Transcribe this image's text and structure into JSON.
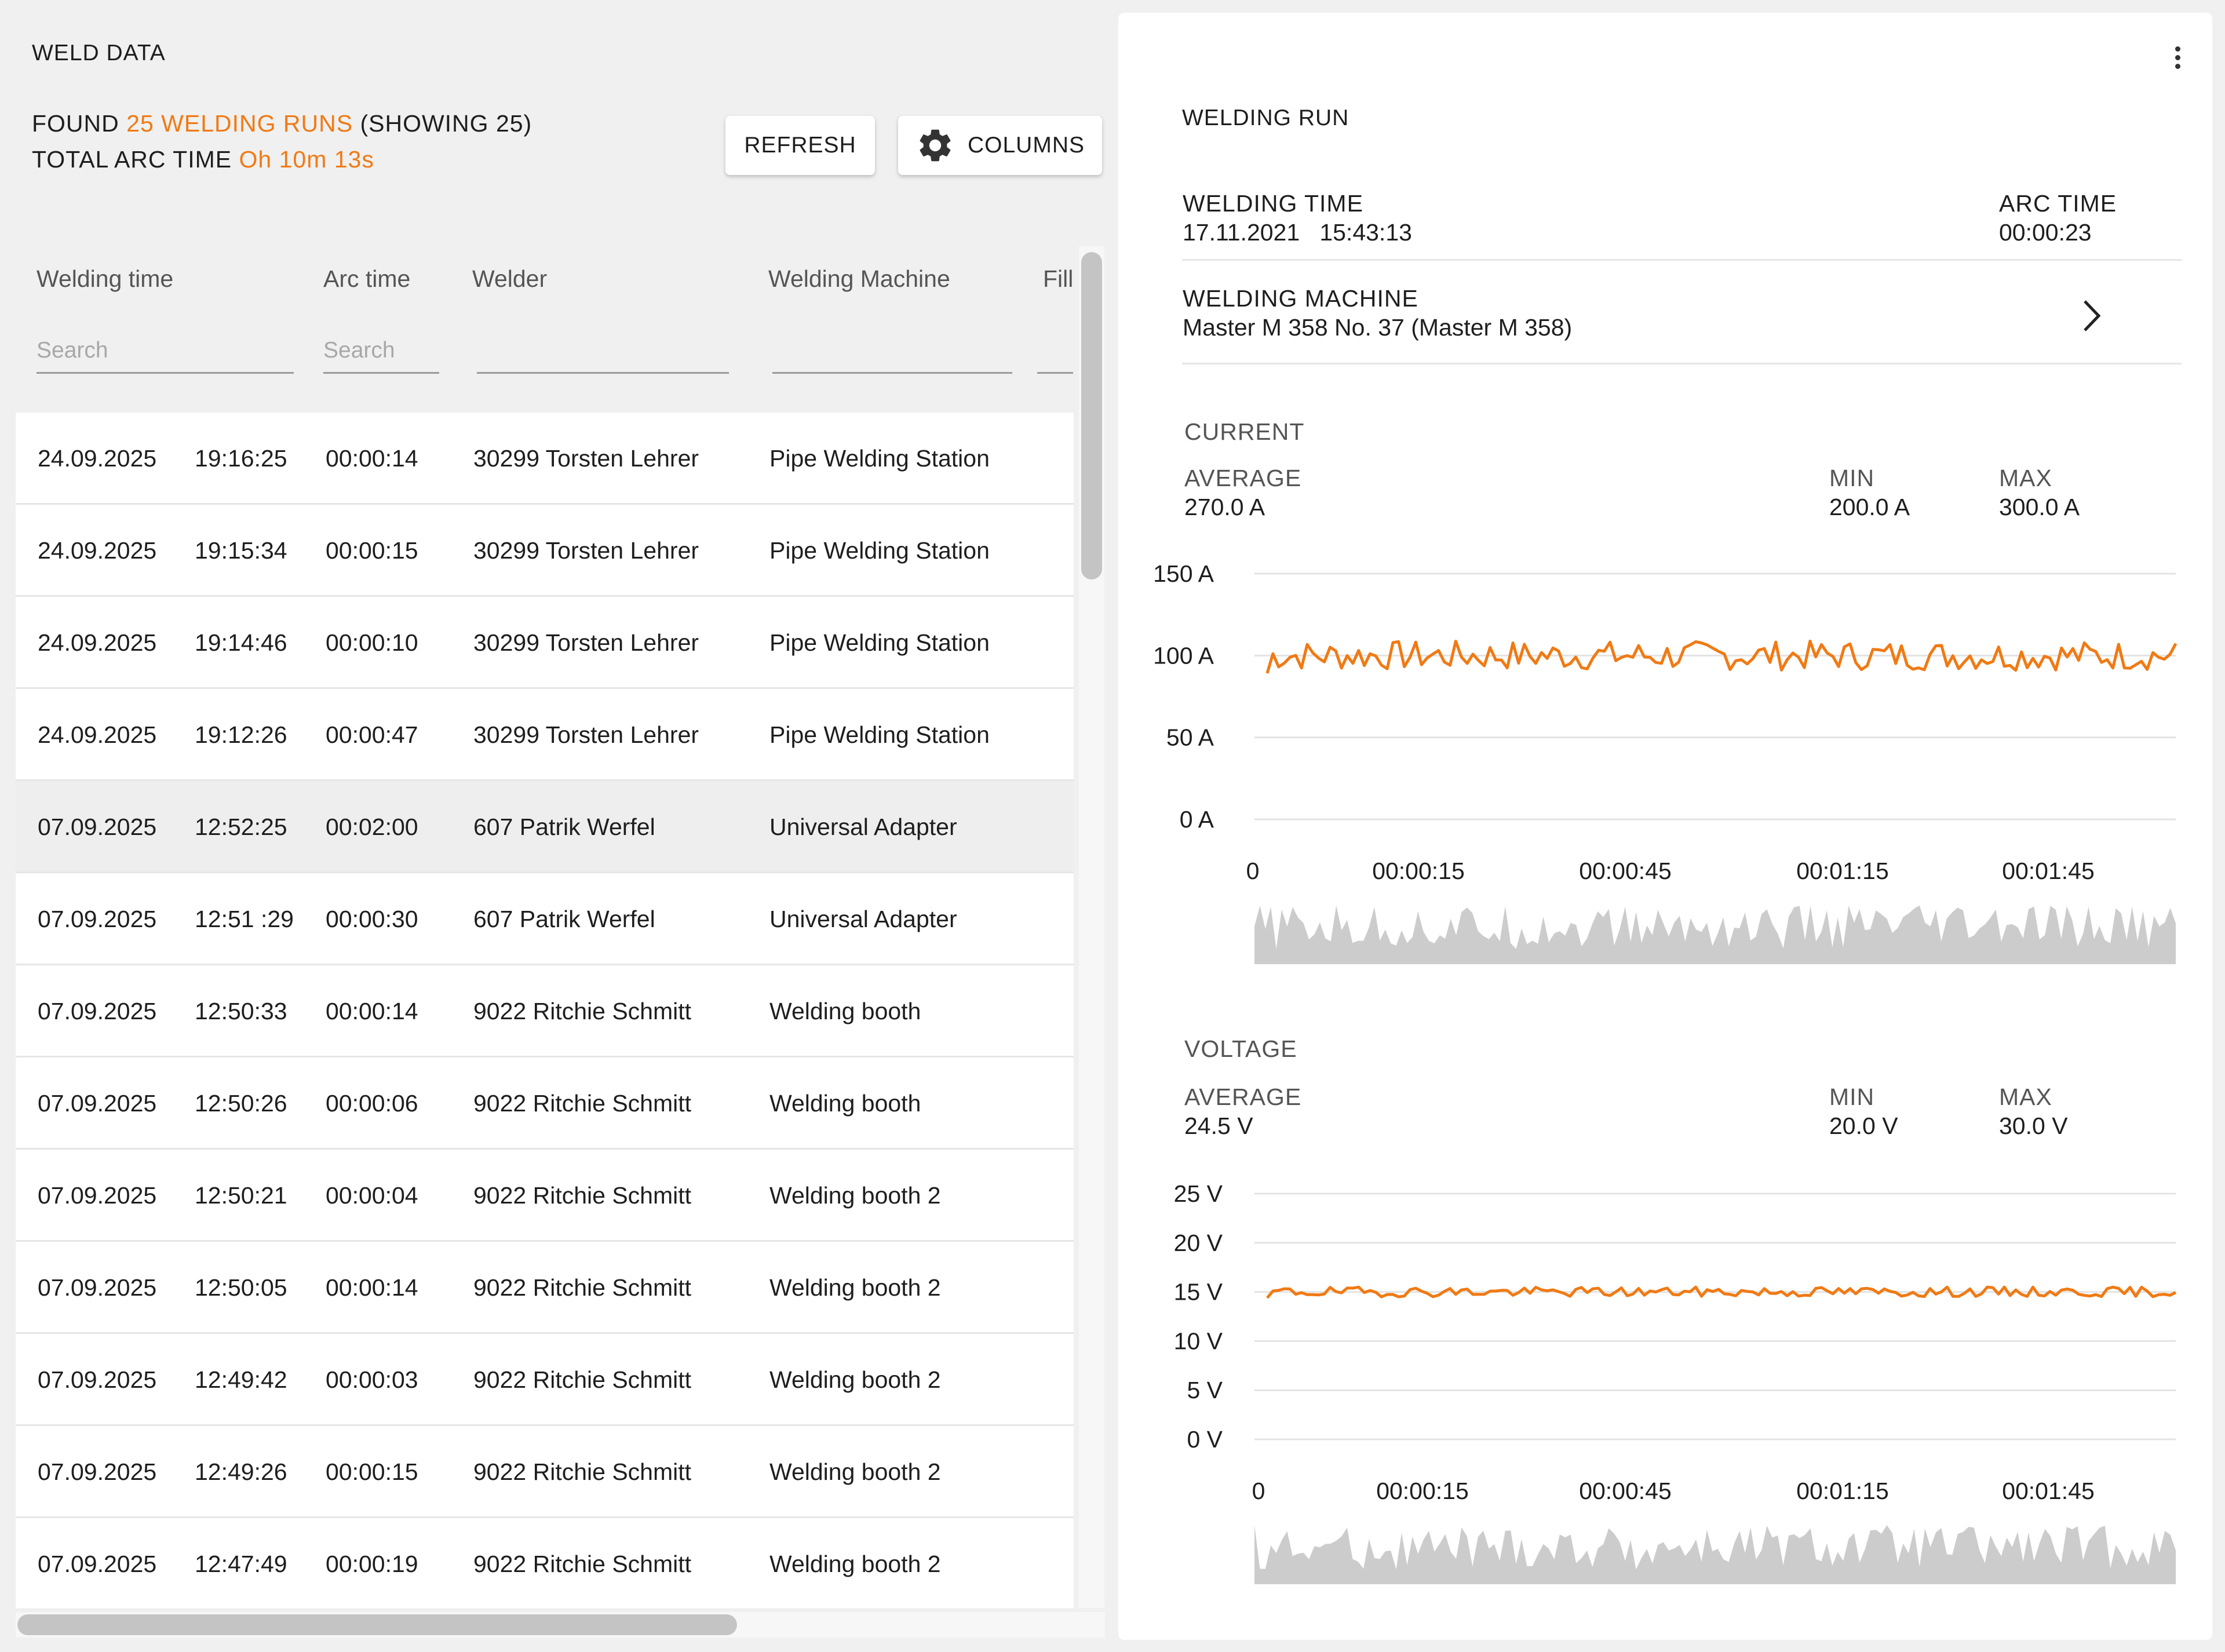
{
  "app": {
    "title": "WELD DATA"
  },
  "summary": {
    "found_prefix": "FOUND ",
    "found_count": "25 WELDING RUNS",
    "found_suffix": " (SHOWING 25)",
    "arc_prefix": "TOTAL ARC TIME ",
    "arc_value": "Oh 10m 13s"
  },
  "toolbar": {
    "refresh_label": "REFRESH",
    "columns_label": "COLUMNS"
  },
  "table": {
    "columns": [
      {
        "label": "Welding time",
        "placeholder": "Search"
      },
      {
        "label": "Arc time",
        "placeholder": "Search"
      },
      {
        "label": "Welder",
        "placeholder": ""
      },
      {
        "label": "Welding Machine",
        "placeholder": ""
      },
      {
        "label": "Fill",
        "placeholder": ""
      }
    ],
    "rows": [
      {
        "date": "24.09.2025",
        "time": "19:16:25",
        "arc": "00:00:14",
        "welder": "30299 Torsten Lehrer",
        "machine": "Pipe Welding Station"
      },
      {
        "date": "24.09.2025",
        "time": "19:15:34",
        "arc": "00:00:15",
        "welder": "30299 Torsten Lehrer",
        "machine": "Pipe Welding Station"
      },
      {
        "date": "24.09.2025",
        "time": "19:14:46",
        "arc": "00:00:10",
        "welder": "30299 Torsten Lehrer",
        "machine": "Pipe Welding Station"
      },
      {
        "date": "24.09.2025",
        "time": "19:12:26",
        "arc": "00:00:47",
        "welder": "30299 Torsten Lehrer",
        "machine": "Pipe Welding Station"
      },
      {
        "date": "07.09.2025",
        "time": "12:52:25",
        "arc": "00:02:00",
        "welder": "607 Patrik Werfel",
        "machine": "Universal Adapter",
        "selected": true
      },
      {
        "date": "07.09.2025",
        "time": "12:51 :29",
        "arc": "00:00:30",
        "welder": "607 Patrik Werfel",
        "machine": "Universal Adapter"
      },
      {
        "date": "07.09.2025",
        "time": "12:50:33",
        "arc": "00:00:14",
        "welder": "9022 Ritchie Schmitt",
        "machine": "Welding booth"
      },
      {
        "date": "07.09.2025",
        "time": "12:50:26",
        "arc": "00:00:06",
        "welder": "9022 Ritchie Schmitt",
        "machine": "Welding booth"
      },
      {
        "date": "07.09.2025",
        "time": "12:50:21",
        "arc": "00:00:04",
        "welder": "9022 Ritchie Schmitt",
        "machine": "Welding booth 2"
      },
      {
        "date": "07.09.2025",
        "time": "12:50:05",
        "arc": "00:00:14",
        "welder": "9022 Ritchie Schmitt",
        "machine": "Welding booth 2"
      },
      {
        "date": "07.09.2025",
        "time": "12:49:42",
        "arc": "00:00:03",
        "welder": "9022 Ritchie Schmitt",
        "machine": "Welding booth 2"
      },
      {
        "date": "07.09.2025",
        "time": "12:49:26",
        "arc": "00:00:15",
        "welder": "9022 Ritchie Schmitt",
        "machine": "Welding booth 2"
      },
      {
        "date": "07.09.2025",
        "time": "12:47:49",
        "arc": "00:00:19",
        "welder": "9022 Ritchie Schmitt",
        "machine": "Welding booth 2"
      }
    ]
  },
  "detail": {
    "title": "WELDING RUN",
    "welding_time_label": "WELDING TIME",
    "welding_time_value": "17.11.2021   15:43:13",
    "arc_time_label": "ARC TIME",
    "arc_time_value": "00:00:23",
    "machine_label": "WELDING MACHINE",
    "machine_value": "Master M 358 No. 37 (Master M 358)",
    "current": {
      "label": "CURRENT",
      "average_label": "AVERAGE",
      "average_value": "270.0 A",
      "min_label": "MIN",
      "min_value": "200.0 A",
      "max_label": "MAX",
      "max_value": "300.0 A"
    },
    "voltage": {
      "label": "VOLTAGE",
      "average_label": "AVERAGE",
      "average_value": "24.5 V",
      "min_label": "MIN",
      "min_value": "20.0 V",
      "max_label": "MAX",
      "max_value": "30.0 V"
    }
  },
  "chart_data": [
    {
      "type": "line",
      "title": "CURRENT",
      "y_ticks": [
        "150 A",
        "100 A",
        "50 A",
        "0 A"
      ],
      "y_tick_values": [
        150,
        100,
        50,
        0
      ],
      "x_ticks": [
        "0",
        "00:00:15",
        "00:00:45",
        "00:01:15",
        "00:01:45"
      ],
      "ylim": [
        0,
        150
      ],
      "grid": true,
      "series": [
        {
          "color": "#f07a14",
          "baseline": 100,
          "amplitude": 9,
          "points": 160,
          "seed": 7
        }
      ],
      "overview": {
        "color": "#cccccc"
      }
    },
    {
      "type": "line",
      "title": "VOLTAGE",
      "y_ticks": [
        "25 V",
        "20 V",
        "15 V",
        "10 V",
        "5 V",
        "0 V"
      ],
      "y_tick_values": [
        25,
        20,
        15,
        10,
        5,
        0
      ],
      "x_ticks": [
        "0",
        "00:00:15",
        "00:00:45",
        "00:01:15",
        "00:01:45"
      ],
      "ylim": [
        0,
        25
      ],
      "grid": true,
      "series": [
        {
          "color": "#f07a14",
          "baseline": 15,
          "amplitude": 0.5,
          "points": 160,
          "seed": 19
        }
      ],
      "overview": {
        "color": "#cccccc"
      }
    }
  ]
}
